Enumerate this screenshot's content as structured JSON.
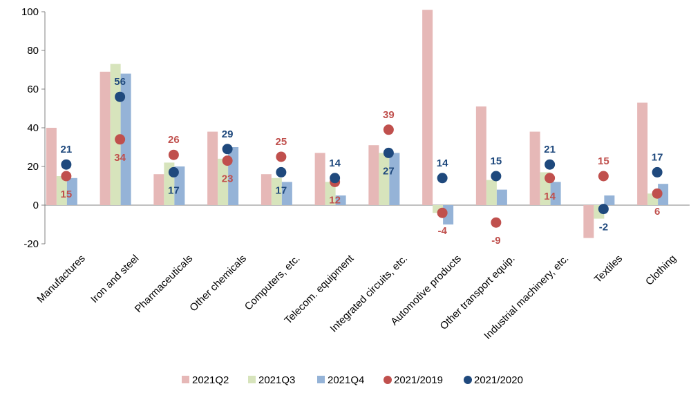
{
  "chart_data": {
    "type": "bar",
    "categories": [
      "Manufactures",
      "Iron and steel",
      "Pharmaceuticals",
      "Other chemicals",
      "Computers, etc.",
      "Telecom. equipment",
      "Integrated circuits, etc.",
      "Automotive products",
      "Other transport equip.",
      "Industrial machinery, etc.",
      "Textiles",
      "Clothing"
    ],
    "ylim": [
      -20,
      100
    ],
    "yticks": [
      -20,
      0,
      20,
      40,
      60,
      80,
      100
    ],
    "series": [
      {
        "name": "2021Q2",
        "kind": "bar",
        "color": "#e6b8b7",
        "values": [
          40,
          69,
          16,
          38,
          16,
          27,
          31,
          101,
          51,
          38,
          -17,
          53
        ]
      },
      {
        "name": "2021Q3",
        "kind": "bar",
        "color": "#d7e4bc",
        "values": [
          15,
          73,
          22,
          24,
          14,
          12,
          27,
          -4,
          13,
          17,
          -7,
          6
        ]
      },
      {
        "name": "2021Q4",
        "kind": "bar",
        "color": "#95b3d7",
        "values": [
          14,
          68,
          20,
          30,
          12,
          5,
          27,
          -10,
          8,
          12,
          5,
          11
        ]
      },
      {
        "name": "2021/2019",
        "kind": "dot",
        "color": "#c0504d",
        "values": [
          15,
          34,
          26,
          23,
          25,
          12,
          39,
          -4,
          -9,
          14,
          15,
          6
        ]
      },
      {
        "name": "2021/2020",
        "kind": "dot",
        "color": "#1f497d",
        "values": [
          21,
          56,
          17,
          29,
          17,
          14,
          27,
          14,
          15,
          21,
          -2,
          17
        ]
      }
    ],
    "data_labels": {
      "2021/2019": [
        "15",
        "34",
        "26",
        "23",
        "25",
        "12",
        "39",
        "-4",
        "-9",
        "14",
        "15",
        "6"
      ],
      "2021/2020": [
        "21",
        "56",
        "17",
        "29",
        "17",
        "14",
        "27",
        "14",
        "15",
        "21",
        "-2",
        "17"
      ]
    },
    "legend": [
      "2021Q2",
      "2021Q3",
      "2021Q4",
      "2021/2019",
      "2021/2020"
    ],
    "legend_position": "bottom",
    "title": "",
    "xlabel": "",
    "ylabel": ""
  }
}
